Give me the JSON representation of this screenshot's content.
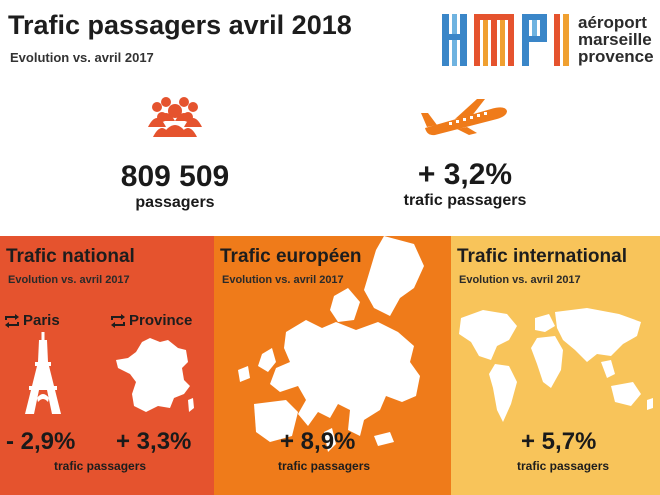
{
  "header": {
    "title": "Trafic passagers avril 2018",
    "subtitle": "Evolution vs. avril 2017"
  },
  "logo": {
    "line1": "aéroport",
    "line2": "marseille",
    "line3": "provence",
    "colors": [
      "#3a86c8",
      "#e5532e",
      "#f0a030",
      "#6fb3e0"
    ]
  },
  "stats": {
    "passengers": {
      "icon": "people-group-icon",
      "value": "809 509",
      "label": "passagers"
    },
    "evolution": {
      "icon": "airplane-icon",
      "value": "+ 3,2%",
      "label": "trafic passagers"
    }
  },
  "panels": {
    "national": {
      "title": "Trafic national",
      "subtitle": "Evolution vs. avril 2017",
      "paris_label": "Paris",
      "province_label": "Province",
      "paris_percent": "- 2,9%",
      "province_percent": "+ 3,3%",
      "label": "trafic passagers",
      "color": "#e5532e"
    },
    "european": {
      "title": "Trafic européen",
      "subtitle": "Evolution vs. avril 2017",
      "percent": "+ 8,9%",
      "label": "trafic passagers",
      "color": "#ef7b1a"
    },
    "international": {
      "title": "Trafic international",
      "subtitle": "Evolution vs. avril 2017",
      "percent": "+ 5,7%",
      "label": "trafic passagers",
      "color": "#f8c45a"
    }
  }
}
